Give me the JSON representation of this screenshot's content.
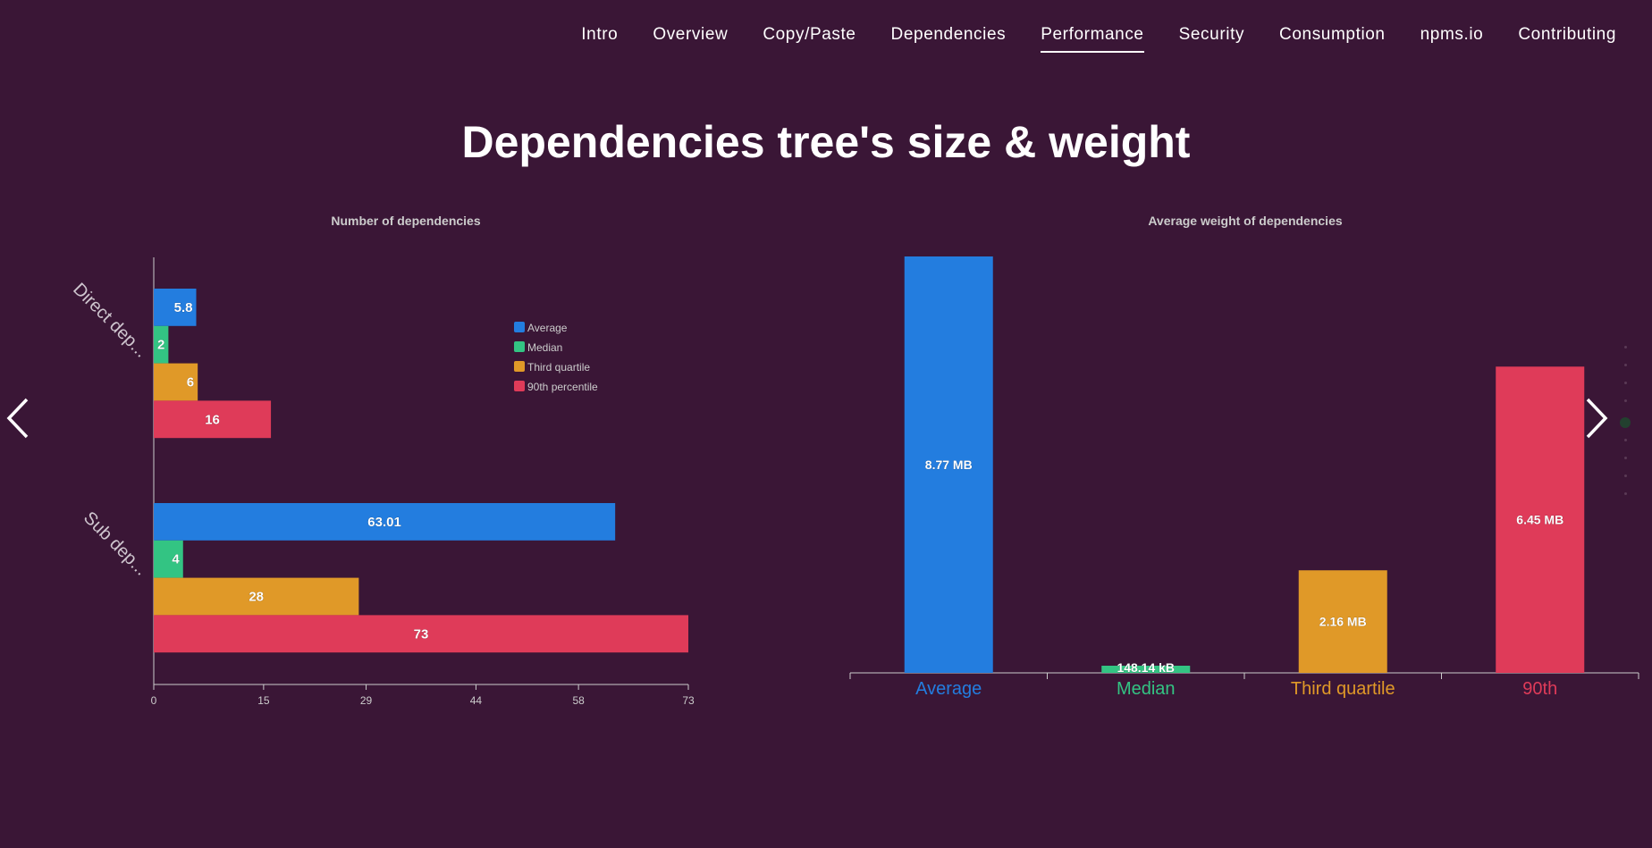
{
  "nav": {
    "items": [
      {
        "label": "Intro"
      },
      {
        "label": "Overview"
      },
      {
        "label": "Copy/Paste"
      },
      {
        "label": "Dependencies"
      },
      {
        "label": "Performance"
      },
      {
        "label": "Security"
      },
      {
        "label": "Consumption"
      },
      {
        "label": "npms.io"
      },
      {
        "label": "Contributing"
      }
    ],
    "active_index": 4
  },
  "page": {
    "title": "Dependencies tree's size & weight"
  },
  "colors": {
    "background": "#3a1636",
    "average": "#237ddf",
    "median": "#33c483",
    "third_quartile": "#e09928",
    "p90": "#df3b59",
    "axis": "#cccccc"
  },
  "icons": [
    "chevron-left-icon",
    "chevron-right-icon"
  ],
  "slide_dots": {
    "count": 9,
    "active_index": 4
  },
  "chart_data": [
    {
      "type": "bar",
      "orientation": "horizontal",
      "title": "Number of dependencies",
      "categories": [
        "Direct dep...",
        "Sub dep..."
      ],
      "series": [
        {
          "name": "Average",
          "color": "#237ddf",
          "values": [
            5.8,
            63.01
          ],
          "labels": [
            "5.8",
            "63.01"
          ]
        },
        {
          "name": "Median",
          "color": "#33c483",
          "values": [
            2,
            4
          ],
          "labels": [
            "2",
            "4"
          ]
        },
        {
          "name": "Third quartile",
          "color": "#e09928",
          "values": [
            6,
            28
          ],
          "labels": [
            "6",
            "28"
          ]
        },
        {
          "name": "90th percentile",
          "color": "#df3b59",
          "values": [
            16,
            73
          ],
          "labels": [
            "16",
            "73"
          ]
        }
      ],
      "x_ticks": [
        "0",
        "15",
        "29",
        "44",
        "58",
        "73"
      ],
      "xlim": [
        0,
        73
      ],
      "legend": "top-right",
      "grid": false
    },
    {
      "type": "bar",
      "title": "Average weight of dependencies",
      "categories": [
        "Average",
        "Median",
        "Third quartile",
        "90th"
      ],
      "unit": "MB",
      "values": [
        8.77,
        0.14814,
        2.16,
        6.45
      ],
      "labels": [
        "8.77 MB",
        "148.14 kB",
        "2.16 MB",
        "6.45 MB"
      ],
      "colors": [
        "#237ddf",
        "#33c483",
        "#e09928",
        "#df3b59"
      ],
      "ylim": [
        0,
        8.77
      ],
      "grid": false
    }
  ]
}
